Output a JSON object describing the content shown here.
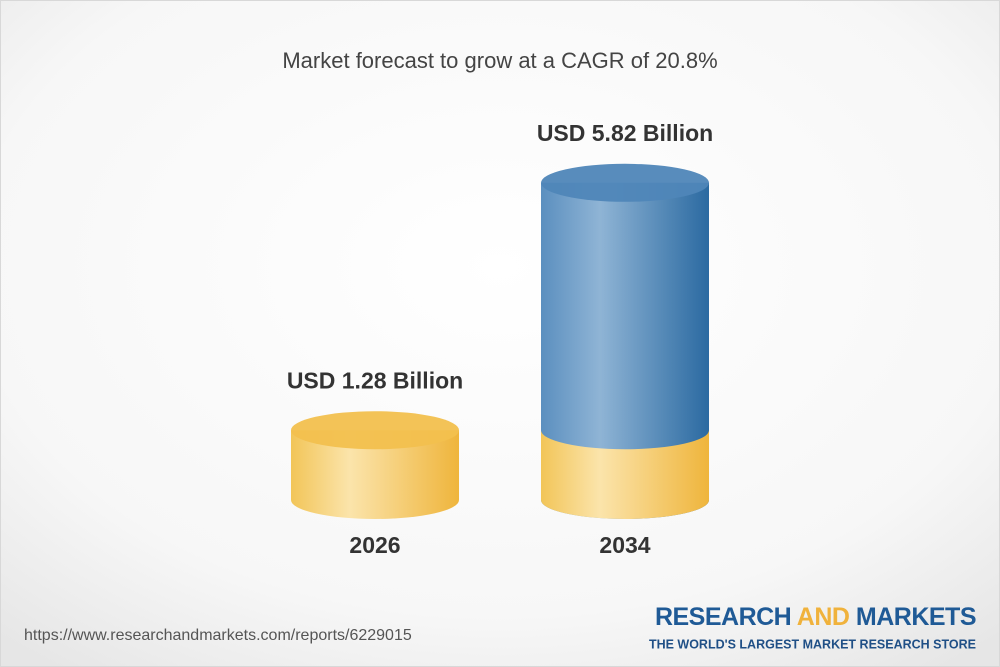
{
  "chart_data": {
    "type": "cylinder-bar",
    "title": "Market forecast to grow at a CAGR of 20.8%",
    "categories": [
      "2026",
      "2034"
    ],
    "values": [
      1.28,
      5.82
    ],
    "value_labels": [
      "USD 1.28 Billion",
      "USD 5.82 Billion"
    ],
    "colors": [
      "#f2c04e",
      "#4f86b8"
    ]
  },
  "footer": {
    "url": "https://www.researchandmarkets.com/reports/6229015"
  },
  "logo": {
    "research": "RESEARCH",
    "and": "AND",
    "markets": "MARKETS",
    "tagline": "THE WORLD'S LARGEST MARKET RESEARCH STORE"
  }
}
